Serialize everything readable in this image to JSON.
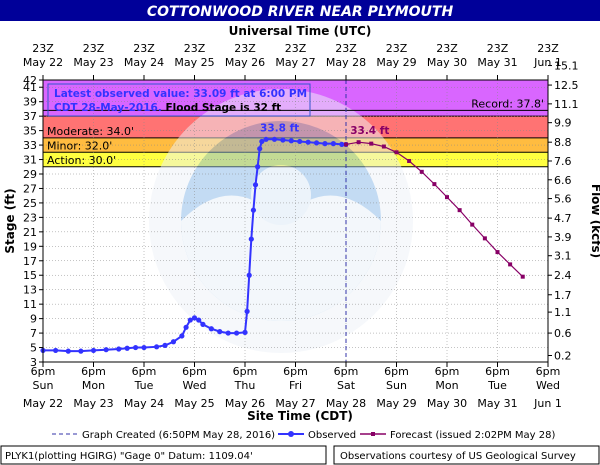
{
  "chart_data": {
    "type": "line",
    "title": "COTTONWOOD RIVER NEAR PLYMOUTH",
    "top_axis_label": "Universal Time (UTC)",
    "top_ticks": [
      {
        "l1": "23Z",
        "l2": "May 22",
        "t": 0
      },
      {
        "l1": "23Z",
        "l2": "May 23",
        "t": 24
      },
      {
        "l1": "23Z",
        "l2": "May 24",
        "t": 48
      },
      {
        "l1": "23Z",
        "l2": "May 25",
        "t": 72
      },
      {
        "l1": "23Z",
        "l2": "May 26",
        "t": 96
      },
      {
        "l1": "23Z",
        "l2": "May 27",
        "t": 120
      },
      {
        "l1": "23Z",
        "l2": "May 28",
        "t": 144
      },
      {
        "l1": "23Z",
        "l2": "May 29",
        "t": 168
      },
      {
        "l1": "23Z",
        "l2": "May 30",
        "t": 192
      },
      {
        "l1": "23Z",
        "l2": "May 31",
        "t": 216
      },
      {
        "l1": "23Z",
        "l2": "Jun  1",
        "t": 240
      }
    ],
    "bottom_axis_label": "Site Time (CDT)",
    "bottom_ticks": [
      {
        "l1": "6pm",
        "l2": "Sun",
        "l3": "May 22",
        "t": 0
      },
      {
        "l1": "6pm",
        "l2": "Mon",
        "l3": "May 23",
        "t": 24
      },
      {
        "l1": "6pm",
        "l2": "Tue",
        "l3": "May 24",
        "t": 48
      },
      {
        "l1": "6pm",
        "l2": "Wed",
        "l3": "May 25",
        "t": 72
      },
      {
        "l1": "6pm",
        "l2": "Thu",
        "l3": "May 26",
        "t": 96
      },
      {
        "l1": "6pm",
        "l2": "Fri",
        "l3": "May 27",
        "t": 120
      },
      {
        "l1": "6pm",
        "l2": "Sat",
        "l3": "May 28",
        "t": 144
      },
      {
        "l1": "6pm",
        "l2": "Sun",
        "l3": "May 29",
        "t": 168
      },
      {
        "l1": "6pm",
        "l2": "Mon",
        "l3": "May 30",
        "t": 192
      },
      {
        "l1": "6pm",
        "l2": "Tue",
        "l3": "May 31",
        "t": 216
      },
      {
        "l1": "6pm",
        "l2": "Wed",
        "l3": "Jun 1",
        "t": 240
      }
    ],
    "xlim": [
      0,
      240
    ],
    "ylabel": "Stage (ft)",
    "ylim": [
      3,
      42
    ],
    "y_ticks": [
      3,
      5,
      7,
      9,
      11,
      13,
      15,
      17,
      19,
      21,
      23,
      25,
      27,
      29,
      31,
      33,
      35,
      37,
      39,
      41,
      42
    ],
    "y2label": "Flow (kcfs)",
    "y2_ticks": [
      {
        "stage": 3.9,
        "label": "0.2"
      },
      {
        "stage": 7.0,
        "label": "0.6"
      },
      {
        "stage": 9.9,
        "label": "1.1"
      },
      {
        "stage": 12.3,
        "label": "1.7"
      },
      {
        "stage": 15.0,
        "label": "2.4"
      },
      {
        "stage": 17.7,
        "label": "3.1"
      },
      {
        "stage": 20.3,
        "label": "3.9"
      },
      {
        "stage": 22.9,
        "label": "4.7"
      },
      {
        "stage": 25.6,
        "label": "5.6"
      },
      {
        "stage": 28.2,
        "label": "6.6"
      },
      {
        "stage": 30.8,
        "label": "7.6"
      },
      {
        "stage": 33.4,
        "label": "8.8"
      },
      {
        "stage": 36.1,
        "label": "9.9"
      },
      {
        "stage": 38.7,
        "label": "11.1"
      },
      {
        "stage": 41.3,
        "label": "12.5"
      },
      {
        "stage": 44.0,
        "label": "15.1"
      }
    ],
    "flood_bands": [
      {
        "name": "Action",
        "label": "Action: 30.0'",
        "from": 30,
        "to": 32,
        "color": "#ffff00"
      },
      {
        "name": "Minor",
        "label": "Minor: 32.0'",
        "from": 32,
        "to": 34,
        "color": "#ffa500"
      },
      {
        "name": "Moderate",
        "label": "Moderate: 34.0'",
        "from": 34,
        "to": 37,
        "color": "#ff4444"
      },
      {
        "name": "Major",
        "label": "",
        "from": 37,
        "to": 42,
        "color": "#cc33ff"
      }
    ],
    "record": {
      "label": "Record: 37.8'",
      "value": 37.8
    },
    "info_box": {
      "line1": "Latest observed value: 33.09 ft at 6:00 PM",
      "line2_blue": "CDT 28-May-2016.",
      "line2_black": " Flood Stage is 32 ft"
    },
    "crest_labels": {
      "observed": "33.8 ft",
      "forecast": "33.4 ft"
    },
    "created_t": 144,
    "series": [
      {
        "name": "Observed",
        "color": "#3333ff",
        "points": [
          [
            0,
            4.6
          ],
          [
            6,
            4.6
          ],
          [
            12,
            4.5
          ],
          [
            18,
            4.5
          ],
          [
            24,
            4.6
          ],
          [
            30,
            4.7
          ],
          [
            36,
            4.8
          ],
          [
            40,
            4.9
          ],
          [
            44,
            5.0
          ],
          [
            48,
            5.0
          ],
          [
            54,
            5.1
          ],
          [
            58,
            5.3
          ],
          [
            62,
            5.8
          ],
          [
            66,
            6.6
          ],
          [
            68,
            7.8
          ],
          [
            70,
            8.8
          ],
          [
            72,
            9.1
          ],
          [
            74,
            8.8
          ],
          [
            76,
            8.2
          ],
          [
            80,
            7.6
          ],
          [
            84,
            7.2
          ],
          [
            88,
            7.0
          ],
          [
            92,
            7.0
          ],
          [
            96,
            7.1
          ],
          [
            97,
            10.0
          ],
          [
            98,
            15.0
          ],
          [
            99,
            20.0
          ],
          [
            100,
            24.0
          ],
          [
            101,
            27.5
          ],
          [
            102,
            30.0
          ],
          [
            103,
            32.5
          ],
          [
            104,
            33.5
          ],
          [
            106,
            33.8
          ],
          [
            110,
            33.8
          ],
          [
            114,
            33.7
          ],
          [
            118,
            33.6
          ],
          [
            122,
            33.5
          ],
          [
            126,
            33.4
          ],
          [
            130,
            33.3
          ],
          [
            134,
            33.2
          ],
          [
            138,
            33.2
          ],
          [
            142,
            33.1
          ],
          [
            144,
            33.09
          ]
        ]
      },
      {
        "name": "Forecast",
        "color": "#880066",
        "points": [
          [
            144,
            33.09
          ],
          [
            150,
            33.4
          ],
          [
            156,
            33.2
          ],
          [
            162,
            32.8
          ],
          [
            168,
            32.0
          ],
          [
            174,
            30.8
          ],
          [
            180,
            29.3
          ],
          [
            186,
            27.6
          ],
          [
            192,
            25.8
          ],
          [
            198,
            24.0
          ],
          [
            204,
            22.0
          ],
          [
            210,
            20.1
          ],
          [
            216,
            18.2
          ],
          [
            222,
            16.5
          ],
          [
            228,
            14.8
          ]
        ]
      }
    ]
  },
  "legend": {
    "created": "Graph Created (6:50PM May 28, 2016)",
    "observed": "Observed",
    "forecast": "Forecast (issued 2:02PM May 28)"
  },
  "footer": {
    "left": "PLYK1(plotting HGIRG) \"Gage 0\" Datum: 1109.04'",
    "right": "Observations courtesy of US Geological Survey"
  }
}
